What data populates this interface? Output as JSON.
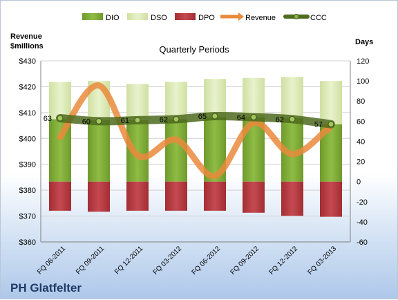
{
  "chart_data": {
    "type": "bar",
    "title": "Quarterly Periods",
    "company": "PH Glatfelter",
    "left_axis_label": [
      "Revenue",
      "$millions"
    ],
    "right_axis_label": "Days",
    "left_ticks": [
      "$430",
      "$420",
      "$410",
      "$400",
      "$390",
      "$380",
      "$370",
      "$360"
    ],
    "right_ticks": [
      "120",
      "100",
      "80",
      "60",
      "40",
      "20",
      "0",
      "-20",
      "-40",
      "-60"
    ],
    "ylim_left": [
      360,
      430
    ],
    "ylim_right": [
      -60,
      120
    ],
    "categories": [
      "FQ 06-2011",
      "FQ 09-2011",
      "FQ 12-2011",
      "FQ 03-2012",
      "FQ 06-2012",
      "FQ 09-2012",
      "FQ 12-2012",
      "FQ 03-2013"
    ],
    "series": [
      {
        "name": "DIO",
        "values": [
          62,
          61,
          61,
          62,
          64,
          64,
          63,
          57
        ]
      },
      {
        "name": "DSO",
        "values": [
          37,
          39,
          36,
          37,
          38,
          39,
          41,
          43
        ]
      },
      {
        "name": "DPO",
        "values": [
          -29,
          -30,
          -29,
          -29,
          -29,
          -31,
          -34,
          -35
        ]
      },
      {
        "name": "Revenue",
        "values": [
          400.5,
          420.5,
          393.5,
          399.5,
          385.5,
          406.0,
          394.0,
          405.0
        ]
      },
      {
        "name": "CCC",
        "values": [
          63,
          60,
          61,
          62,
          65,
          64,
          62,
          57
        ]
      }
    ],
    "ccc_labels": [
      "63",
      "60",
      "61",
      "62",
      "65",
      "64",
      "62",
      "57"
    ],
    "grid": true,
    "legend_position": "top"
  },
  "colors": {
    "dio": "#7ea83a",
    "dio_dark": "#5c8a1f",
    "dso": "#dbe8b6",
    "dpo": "#b3363b",
    "revenue": "#ea8a3c",
    "ccc": "#4f6b1e",
    "ccc_marker": "#8bb04a"
  }
}
